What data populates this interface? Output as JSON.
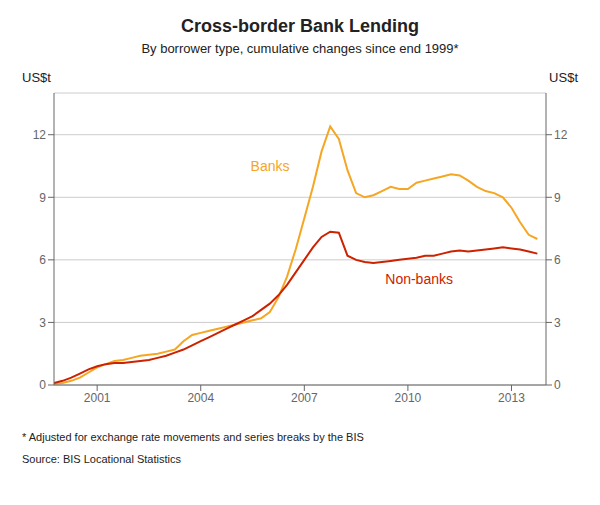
{
  "chart_data": {
    "type": "line",
    "title": "Cross-border Bank Lending",
    "subtitle": "By borrower type, cumulative changes since end 1999*",
    "ylabel": "US$t",
    "y2label": "US$t",
    "footnote": "*    Adjusted for exchange rate movements and series breaks by the BIS",
    "source": "Source:    BIS Locational Statistics",
    "xlim": [
      1999.75,
      2014.0
    ],
    "xticks": [
      2001,
      2004,
      2007,
      2010,
      2013
    ],
    "ylim": [
      0,
      14
    ],
    "yticks": [
      0,
      3,
      6,
      9,
      12
    ],
    "y2lim": [
      0,
      14
    ],
    "y2ticks": [
      0,
      3,
      6,
      9,
      12
    ],
    "grid": "y",
    "x": [
      1999.75,
      2000.0,
      2000.25,
      2000.5,
      2000.75,
      2001.0,
      2001.25,
      2001.5,
      2001.75,
      2002.0,
      2002.25,
      2002.5,
      2002.75,
      2003.0,
      2003.25,
      2003.5,
      2003.75,
      2004.0,
      2004.25,
      2004.5,
      2004.75,
      2005.0,
      2005.25,
      2005.5,
      2005.75,
      2006.0,
      2006.25,
      2006.5,
      2006.75,
      2007.0,
      2007.25,
      2007.5,
      2007.75,
      2008.0,
      2008.25,
      2008.5,
      2008.75,
      2009.0,
      2009.25,
      2009.5,
      2009.75,
      2010.0,
      2010.25,
      2010.5,
      2010.75,
      2011.0,
      2011.25,
      2011.5,
      2011.75,
      2012.0,
      2012.25,
      2012.5,
      2012.75,
      2013.0,
      2013.25,
      2013.5,
      2013.75
    ],
    "series": [
      {
        "name": "Banks",
        "color": "#F5A623",
        "values": [
          0.05,
          0.1,
          0.2,
          0.35,
          0.6,
          0.85,
          1.0,
          1.15,
          1.2,
          1.3,
          1.4,
          1.45,
          1.5,
          1.6,
          1.7,
          2.1,
          2.4,
          2.5,
          2.6,
          2.7,
          2.8,
          2.9,
          3.0,
          3.1,
          3.2,
          3.5,
          4.2,
          5.2,
          6.5,
          8.0,
          9.5,
          11.2,
          12.4,
          11.8,
          10.3,
          9.2,
          9.0,
          9.1,
          9.3,
          9.5,
          9.4,
          9.4,
          9.7,
          9.8,
          9.9,
          10.0,
          10.1,
          10.05,
          9.8,
          9.5,
          9.3,
          9.2,
          9.0,
          8.5,
          7.8,
          7.2,
          7.0
        ]
      },
      {
        "name": "Non-banks",
        "color": "#CC2200",
        "values": [
          0.1,
          0.2,
          0.35,
          0.55,
          0.75,
          0.9,
          1.0,
          1.05,
          1.05,
          1.1,
          1.15,
          1.2,
          1.3,
          1.4,
          1.55,
          1.7,
          1.9,
          2.1,
          2.3,
          2.5,
          2.7,
          2.9,
          3.1,
          3.3,
          3.6,
          3.9,
          4.3,
          4.8,
          5.4,
          6.0,
          6.6,
          7.1,
          7.35,
          7.3,
          6.2,
          6.0,
          5.9,
          5.85,
          5.9,
          5.95,
          6.0,
          6.05,
          6.1,
          6.2,
          6.2,
          6.3,
          6.4,
          6.45,
          6.4,
          6.45,
          6.5,
          6.55,
          6.6,
          6.55,
          6.5,
          6.4,
          6.3
        ]
      }
    ],
    "annotations": [
      {
        "text": "Banks",
        "x": 2005.3,
        "y": 10.5
      },
      {
        "text": "Non-banks",
        "x": 2009.2,
        "y": 5.1
      }
    ]
  }
}
